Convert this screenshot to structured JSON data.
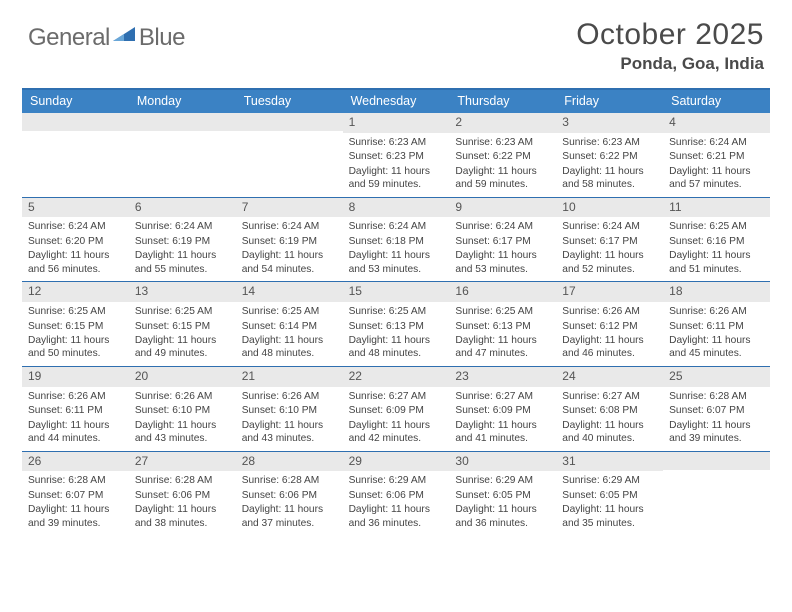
{
  "branding": {
    "word1": "General",
    "word2": "Blue",
    "logo_color": "#2f6fb0",
    "text_gray": "#6b6b6b"
  },
  "title": "October 2025",
  "location": "Ponda, Goa, India",
  "colors": {
    "header_bg": "#3b82c4",
    "rule": "#2f6fb0",
    "daynum_bg": "#e9e9e9",
    "text": "#444444"
  },
  "day_names": [
    "Sunday",
    "Monday",
    "Tuesday",
    "Wednesday",
    "Thursday",
    "Friday",
    "Saturday"
  ],
  "weeks": [
    [
      {
        "blank": true
      },
      {
        "blank": true
      },
      {
        "blank": true
      },
      {
        "n": "1",
        "sr": "Sunrise: 6:23 AM",
        "ss": "Sunset: 6:23 PM",
        "dl": "Daylight: 11 hours and 59 minutes."
      },
      {
        "n": "2",
        "sr": "Sunrise: 6:23 AM",
        "ss": "Sunset: 6:22 PM",
        "dl": "Daylight: 11 hours and 59 minutes."
      },
      {
        "n": "3",
        "sr": "Sunrise: 6:23 AM",
        "ss": "Sunset: 6:22 PM",
        "dl": "Daylight: 11 hours and 58 minutes."
      },
      {
        "n": "4",
        "sr": "Sunrise: 6:24 AM",
        "ss": "Sunset: 6:21 PM",
        "dl": "Daylight: 11 hours and 57 minutes."
      }
    ],
    [
      {
        "n": "5",
        "sr": "Sunrise: 6:24 AM",
        "ss": "Sunset: 6:20 PM",
        "dl": "Daylight: 11 hours and 56 minutes."
      },
      {
        "n": "6",
        "sr": "Sunrise: 6:24 AM",
        "ss": "Sunset: 6:19 PM",
        "dl": "Daylight: 11 hours and 55 minutes."
      },
      {
        "n": "7",
        "sr": "Sunrise: 6:24 AM",
        "ss": "Sunset: 6:19 PM",
        "dl": "Daylight: 11 hours and 54 minutes."
      },
      {
        "n": "8",
        "sr": "Sunrise: 6:24 AM",
        "ss": "Sunset: 6:18 PM",
        "dl": "Daylight: 11 hours and 53 minutes."
      },
      {
        "n": "9",
        "sr": "Sunrise: 6:24 AM",
        "ss": "Sunset: 6:17 PM",
        "dl": "Daylight: 11 hours and 53 minutes."
      },
      {
        "n": "10",
        "sr": "Sunrise: 6:24 AM",
        "ss": "Sunset: 6:17 PM",
        "dl": "Daylight: 11 hours and 52 minutes."
      },
      {
        "n": "11",
        "sr": "Sunrise: 6:25 AM",
        "ss": "Sunset: 6:16 PM",
        "dl": "Daylight: 11 hours and 51 minutes."
      }
    ],
    [
      {
        "n": "12",
        "sr": "Sunrise: 6:25 AM",
        "ss": "Sunset: 6:15 PM",
        "dl": "Daylight: 11 hours and 50 minutes."
      },
      {
        "n": "13",
        "sr": "Sunrise: 6:25 AM",
        "ss": "Sunset: 6:15 PM",
        "dl": "Daylight: 11 hours and 49 minutes."
      },
      {
        "n": "14",
        "sr": "Sunrise: 6:25 AM",
        "ss": "Sunset: 6:14 PM",
        "dl": "Daylight: 11 hours and 48 minutes."
      },
      {
        "n": "15",
        "sr": "Sunrise: 6:25 AM",
        "ss": "Sunset: 6:13 PM",
        "dl": "Daylight: 11 hours and 48 minutes."
      },
      {
        "n": "16",
        "sr": "Sunrise: 6:25 AM",
        "ss": "Sunset: 6:13 PM",
        "dl": "Daylight: 11 hours and 47 minutes."
      },
      {
        "n": "17",
        "sr": "Sunrise: 6:26 AM",
        "ss": "Sunset: 6:12 PM",
        "dl": "Daylight: 11 hours and 46 minutes."
      },
      {
        "n": "18",
        "sr": "Sunrise: 6:26 AM",
        "ss": "Sunset: 6:11 PM",
        "dl": "Daylight: 11 hours and 45 minutes."
      }
    ],
    [
      {
        "n": "19",
        "sr": "Sunrise: 6:26 AM",
        "ss": "Sunset: 6:11 PM",
        "dl": "Daylight: 11 hours and 44 minutes."
      },
      {
        "n": "20",
        "sr": "Sunrise: 6:26 AM",
        "ss": "Sunset: 6:10 PM",
        "dl": "Daylight: 11 hours and 43 minutes."
      },
      {
        "n": "21",
        "sr": "Sunrise: 6:26 AM",
        "ss": "Sunset: 6:10 PM",
        "dl": "Daylight: 11 hours and 43 minutes."
      },
      {
        "n": "22",
        "sr": "Sunrise: 6:27 AM",
        "ss": "Sunset: 6:09 PM",
        "dl": "Daylight: 11 hours and 42 minutes."
      },
      {
        "n": "23",
        "sr": "Sunrise: 6:27 AM",
        "ss": "Sunset: 6:09 PM",
        "dl": "Daylight: 11 hours and 41 minutes."
      },
      {
        "n": "24",
        "sr": "Sunrise: 6:27 AM",
        "ss": "Sunset: 6:08 PM",
        "dl": "Daylight: 11 hours and 40 minutes."
      },
      {
        "n": "25",
        "sr": "Sunrise: 6:28 AM",
        "ss": "Sunset: 6:07 PM",
        "dl": "Daylight: 11 hours and 39 minutes."
      }
    ],
    [
      {
        "n": "26",
        "sr": "Sunrise: 6:28 AM",
        "ss": "Sunset: 6:07 PM",
        "dl": "Daylight: 11 hours and 39 minutes."
      },
      {
        "n": "27",
        "sr": "Sunrise: 6:28 AM",
        "ss": "Sunset: 6:06 PM",
        "dl": "Daylight: 11 hours and 38 minutes."
      },
      {
        "n": "28",
        "sr": "Sunrise: 6:28 AM",
        "ss": "Sunset: 6:06 PM",
        "dl": "Daylight: 11 hours and 37 minutes."
      },
      {
        "n": "29",
        "sr": "Sunrise: 6:29 AM",
        "ss": "Sunset: 6:06 PM",
        "dl": "Daylight: 11 hours and 36 minutes."
      },
      {
        "n": "30",
        "sr": "Sunrise: 6:29 AM",
        "ss": "Sunset: 6:05 PM",
        "dl": "Daylight: 11 hours and 36 minutes."
      },
      {
        "n": "31",
        "sr": "Sunrise: 6:29 AM",
        "ss": "Sunset: 6:05 PM",
        "dl": "Daylight: 11 hours and 35 minutes."
      },
      {
        "blank": true
      }
    ]
  ]
}
